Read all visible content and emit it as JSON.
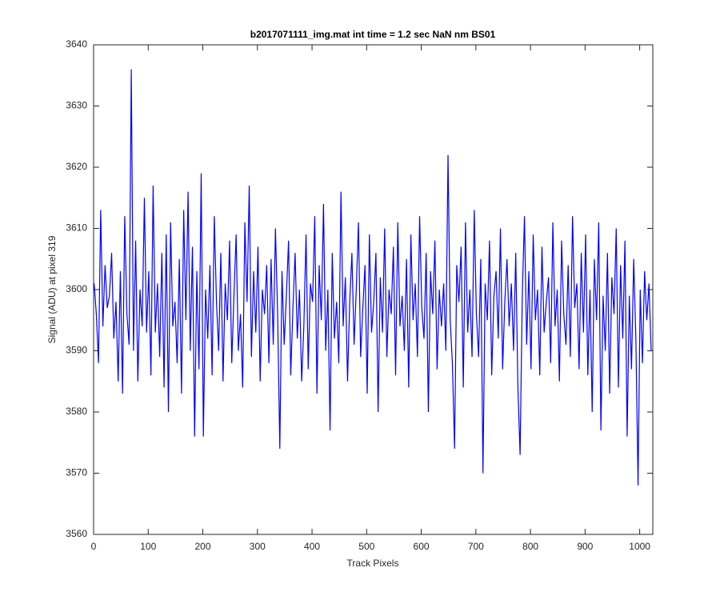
{
  "chart_data": {
    "type": "line",
    "title": "b2017071111_img.mat int time = 1.2 sec  NaN nm BS01",
    "x_label": "Track Pixels",
    "y_label": "Signal (ADU) at pixel 319",
    "xlim": [
      0,
      1024
    ],
    "xticks": [
      0,
      100,
      200,
      300,
      400,
      500,
      600,
      700,
      800,
      900,
      1000
    ],
    "ylim": [
      3560,
      3640
    ],
    "yticks": [
      3560,
      3570,
      3580,
      3590,
      3600,
      3610,
      3620,
      3630,
      3640
    ],
    "grid": false,
    "x": [
      1,
      5,
      9,
      13,
      17,
      21,
      25,
      29,
      33,
      37,
      41,
      45,
      49,
      53,
      57,
      61,
      65,
      69,
      73,
      77,
      81,
      85,
      89,
      93,
      97,
      101,
      105,
      109,
      113,
      117,
      121,
      125,
      129,
      133,
      137,
      141,
      145,
      149,
      153,
      157,
      161,
      165,
      169,
      173,
      177,
      181,
      185,
      189,
      193,
      197,
      201,
      205,
      209,
      213,
      217,
      221,
      225,
      229,
      233,
      237,
      241,
      245,
      249,
      253,
      257,
      261,
      265,
      269,
      273,
      277,
      281,
      285,
      289,
      293,
      297,
      301,
      305,
      309,
      313,
      317,
      321,
      325,
      329,
      333,
      337,
      341,
      345,
      349,
      353,
      357,
      361,
      365,
      369,
      373,
      377,
      381,
      385,
      389,
      393,
      397,
      401,
      405,
      409,
      413,
      417,
      421,
      425,
      429,
      433,
      437,
      441,
      445,
      449,
      453,
      457,
      461,
      465,
      469,
      473,
      477,
      481,
      485,
      489,
      493,
      497,
      501,
      505,
      509,
      513,
      517,
      521,
      525,
      529,
      533,
      537,
      541,
      545,
      549,
      553,
      557,
      561,
      565,
      569,
      573,
      577,
      581,
      585,
      589,
      593,
      597,
      601,
      605,
      609,
      613,
      617,
      621,
      625,
      629,
      633,
      637,
      641,
      645,
      649,
      653,
      657,
      661,
      665,
      669,
      673,
      677,
      681,
      685,
      689,
      693,
      697,
      701,
      705,
      709,
      713,
      717,
      721,
      725,
      729,
      733,
      737,
      741,
      745,
      749,
      753,
      757,
      761,
      765,
      769,
      773,
      777,
      781,
      785,
      789,
      793,
      797,
      801,
      805,
      809,
      813,
      817,
      821,
      825,
      829,
      833,
      837,
      841,
      845,
      849,
      853,
      857,
      861,
      865,
      869,
      873,
      877,
      881,
      885,
      889,
      893,
      897,
      901,
      905,
      909,
      913,
      917,
      921,
      925,
      929,
      933,
      937,
      941,
      945,
      949,
      953,
      957,
      961,
      965,
      969,
      973,
      977,
      981,
      985,
      989,
      993,
      997,
      1001,
      1005,
      1009,
      1013,
      1017,
      1021
    ],
    "series": [
      {
        "color": "#0000ff",
        "values": [
          3601,
          3596,
          3588,
          3613,
          3594,
          3604,
          3597,
          3599,
          3606,
          3592,
          3598,
          3585,
          3603,
          3583,
          3612,
          3596,
          3591,
          3636,
          3590,
          3608,
          3585,
          3600,
          3594,
          3615,
          3593,
          3603,
          3586,
          3617,
          3593,
          3601,
          3589,
          3606,
          3584,
          3609,
          3580,
          3611,
          3594,
          3598,
          3588,
          3605,
          3583,
          3613,
          3595,
          3616,
          3590,
          3607,
          3576,
          3603,
          3587,
          3619,
          3576,
          3600,
          3592,
          3604,
          3586,
          3612,
          3598,
          3590,
          3606,
          3585,
          3601,
          3595,
          3608,
          3588,
          3599,
          3609,
          3590,
          3596,
          3584,
          3611,
          3598,
          3617,
          3589,
          3603,
          3593,
          3607,
          3585,
          3600,
          3596,
          3604,
          3588,
          3605,
          3591,
          3610,
          3596,
          3574,
          3603,
          3591,
          3599,
          3608,
          3586,
          3597,
          3606,
          3592,
          3600,
          3585,
          3594,
          3609,
          3587,
          3601,
          3598,
          3612,
          3583,
          3604,
          3595,
          3614,
          3590,
          3600,
          3577,
          3606,
          3592,
          3598,
          3588,
          3616,
          3594,
          3602,
          3585,
          3598,
          3606,
          3591,
          3600,
          3611,
          3589,
          3597,
          3604,
          3583,
          3609,
          3593,
          3598,
          3606,
          3580,
          3602,
          3593,
          3610,
          3589,
          3600,
          3596,
          3607,
          3586,
          3611,
          3594,
          3599,
          3590,
          3605,
          3584,
          3609,
          3595,
          3601,
          3589,
          3612,
          3597,
          3592,
          3606,
          3580,
          3603,
          3596,
          3608,
          3587,
          3600,
          3594,
          3601,
          3590,
          3622,
          3595,
          3588,
          3574,
          3604,
          3598,
          3607,
          3584,
          3611,
          3593,
          3600,
          3589,
          3613,
          3596,
          3589,
          3605,
          3570,
          3601,
          3595,
          3608,
          3586,
          3599,
          3603,
          3592,
          3610,
          3587,
          3598,
          3605,
          3594,
          3601,
          3590,
          3606,
          3584,
          3573,
          3599,
          3612,
          3591,
          3603,
          3587,
          3609,
          3595,
          3600,
          3586,
          3607,
          3593,
          3598,
          3602,
          3588,
          3611,
          3594,
          3600,
          3585,
          3608,
          3596,
          3591,
          3604,
          3589,
          3612,
          3597,
          3601,
          3587,
          3606,
          3593,
          3609,
          3586,
          3600,
          3580,
          3605,
          3595,
          3611,
          3577,
          3599,
          3590,
          3606,
          3583,
          3602,
          3596,
          3610,
          3584,
          3604,
          3592,
          3608,
          3576,
          3599,
          3587,
          3605,
          3592,
          3568,
          3600,
          3588,
          3603,
          3595,
          3601,
          3590
        ]
      }
    ]
  }
}
